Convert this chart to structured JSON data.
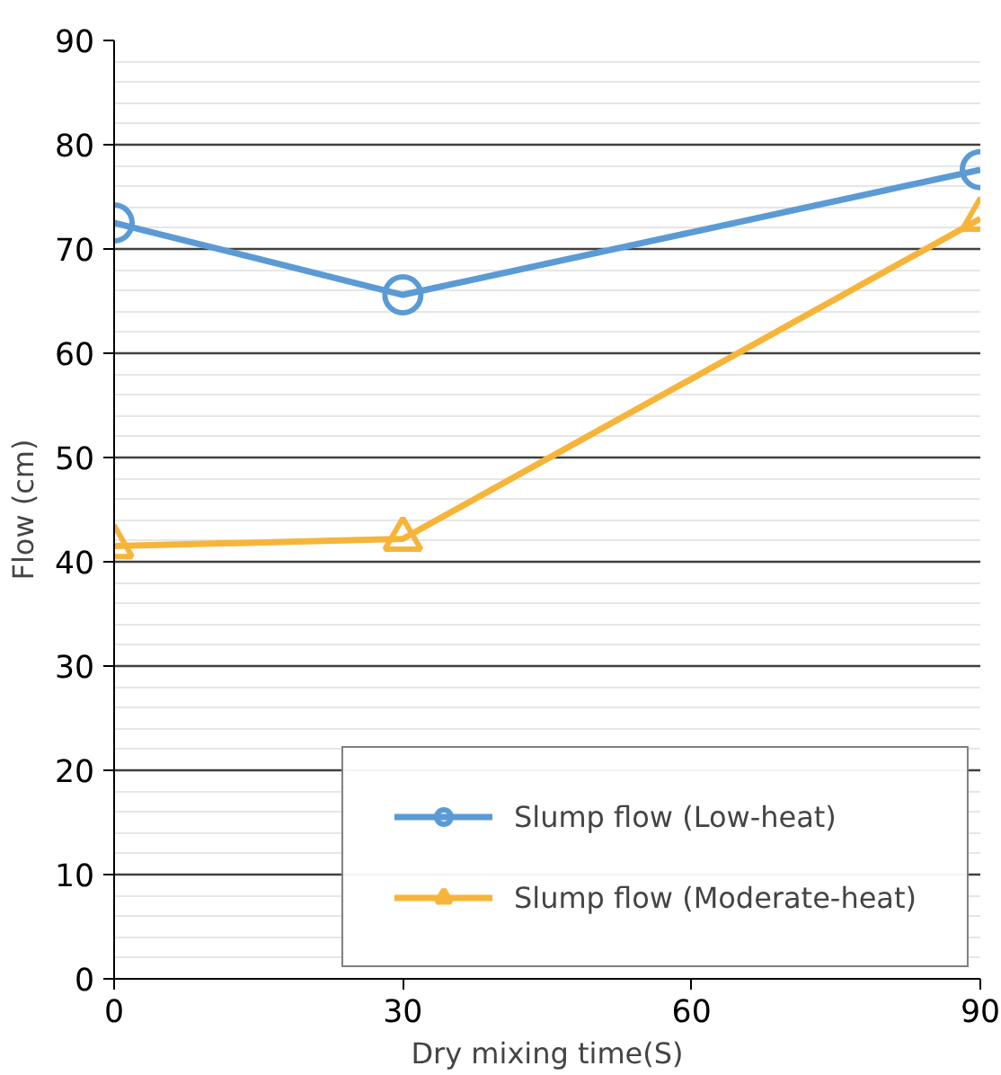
{
  "chart_data": {
    "type": "line",
    "xlabel": "Dry mixing time(S)",
    "ylabel": "Flow (cm)",
    "x": [
      0,
      30,
      90
    ],
    "series": [
      {
        "name": "Slump flow (Low-heat)",
        "color": "#5b9bd5",
        "values": [
          72.5,
          65.6,
          77.6
        ],
        "marker": "circle"
      },
      {
        "name": "Slump flow (Moderate-heat)",
        "color": "#f6b53a",
        "values": [
          41.5,
          42.2,
          72.9
        ],
        "marker": "triangle"
      }
    ],
    "xlim": [
      0,
      90
    ],
    "xticks": [
      0,
      30,
      60,
      90
    ],
    "ylim": [
      0,
      90
    ],
    "yticks": [
      0,
      10,
      20,
      30,
      40,
      50,
      60,
      70,
      80,
      90
    ],
    "grid": "y",
    "legend": "bottom right",
    "line_style": "solid"
  }
}
